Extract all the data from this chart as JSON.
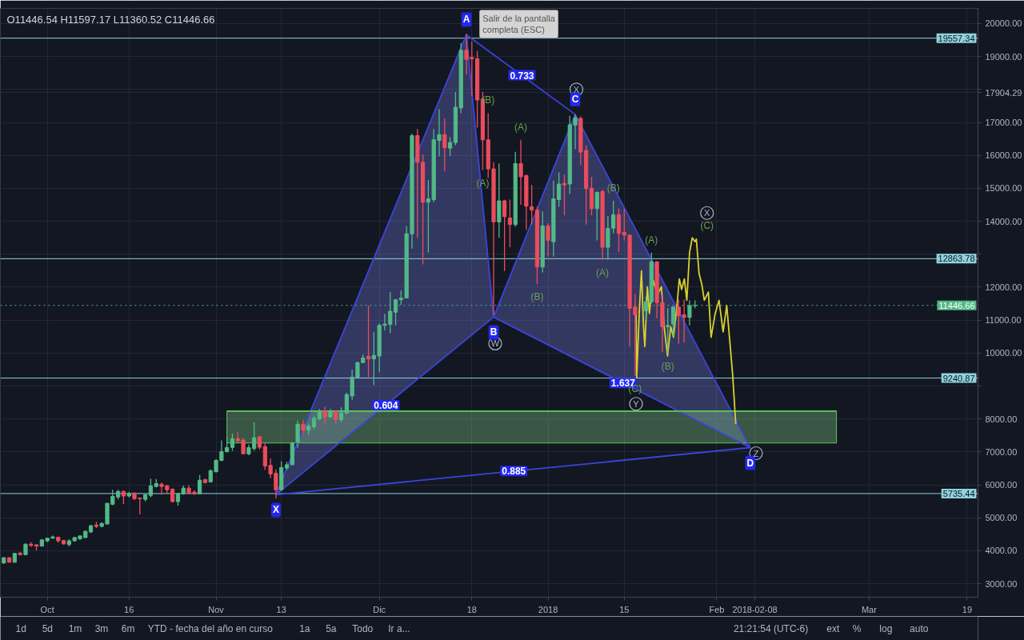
{
  "chart_data": {
    "type": "candlestick",
    "title": "O11446.54 H11597.17 L11360.52 C11446.66",
    "x": [
      "2017-09-23",
      "2017-09-24",
      "2017-09-25",
      "2017-09-26",
      "2017-09-27",
      "2017-09-28",
      "2017-09-29",
      "2017-09-30",
      "2017-10-01",
      "2017-10-02",
      "2017-10-03",
      "2017-10-04",
      "2017-10-05",
      "2017-10-06",
      "2017-10-07",
      "2017-10-08",
      "2017-10-09",
      "2017-10-10",
      "2017-10-11",
      "2017-10-12",
      "2017-10-13",
      "2017-10-14",
      "2017-10-15",
      "2017-10-16",
      "2017-10-17",
      "2017-10-18",
      "2017-10-19",
      "2017-10-20",
      "2017-10-21",
      "2017-10-22",
      "2017-10-23",
      "2017-10-24",
      "2017-10-25",
      "2017-10-26",
      "2017-10-27",
      "2017-10-28",
      "2017-10-29",
      "2017-10-30",
      "2017-10-31",
      "2017-11-01",
      "2017-11-02",
      "2017-11-03",
      "2017-11-04",
      "2017-11-05",
      "2017-11-06",
      "2017-11-07",
      "2017-11-08",
      "2017-11-09",
      "2017-11-10",
      "2017-11-11",
      "2017-11-12",
      "2017-11-13",
      "2017-11-14",
      "2017-11-15",
      "2017-11-16",
      "2017-11-17",
      "2017-11-18",
      "2017-11-19",
      "2017-11-20",
      "2017-11-21",
      "2017-11-22",
      "2017-11-23",
      "2017-11-24",
      "2017-11-25",
      "2017-11-26",
      "2017-11-27",
      "2017-11-28",
      "2017-11-29",
      "2017-11-30",
      "2017-12-01",
      "2017-12-02",
      "2017-12-03",
      "2017-12-04",
      "2017-12-05",
      "2017-12-06",
      "2017-12-07",
      "2017-12-08",
      "2017-12-09",
      "2017-12-10",
      "2017-12-11",
      "2017-12-12",
      "2017-12-13",
      "2017-12-14",
      "2017-12-15",
      "2017-12-16",
      "2017-12-17",
      "2017-12-18",
      "2017-12-19",
      "2017-12-20",
      "2017-12-21",
      "2017-12-22",
      "2017-12-23",
      "2017-12-24",
      "2017-12-25",
      "2017-12-26",
      "2017-12-27",
      "2017-12-28",
      "2017-12-29",
      "2017-12-30",
      "2017-12-31",
      "2018-01-01",
      "2018-01-02",
      "2018-01-03",
      "2018-01-04",
      "2018-01-05",
      "2018-01-06",
      "2018-01-07",
      "2018-01-08",
      "2018-01-09",
      "2018-01-10",
      "2018-01-11",
      "2018-01-12",
      "2018-01-13",
      "2018-01-14",
      "2018-01-15",
      "2018-01-16",
      "2018-01-17",
      "2018-01-19",
      "2018-01-20",
      "2018-01-21",
      "2018-01-22",
      "2018-01-23",
      "2018-01-24",
      "2018-01-25",
      "2018-01-26",
      "2018-01-27",
      "2018-01-28"
    ],
    "ohlc": [
      [
        3630,
        3800,
        3600,
        3790
      ],
      [
        3790,
        3800,
        3640,
        3650
      ],
      [
        3650,
        3940,
        3640,
        3920
      ],
      [
        3930,
        3970,
        3860,
        3880
      ],
      [
        3880,
        4220,
        3870,
        4200
      ],
      [
        4200,
        4260,
        4120,
        4160
      ],
      [
        4180,
        4200,
        4010,
        4140
      ],
      [
        4140,
        4350,
        4130,
        4330
      ],
      [
        4300,
        4400,
        4260,
        4380
      ],
      [
        4380,
        4460,
        4360,
        4420
      ],
      [
        4410,
        4430,
        4250,
        4300
      ],
      [
        4310,
        4330,
        4180,
        4210
      ],
      [
        4190,
        4350,
        4130,
        4300
      ],
      [
        4300,
        4420,
        4280,
        4400
      ],
      [
        4360,
        4470,
        4330,
        4450
      ],
      [
        4400,
        4620,
        4380,
        4590
      ],
      [
        4570,
        4790,
        4540,
        4760
      ],
      [
        4780,
        4880,
        4690,
        4740
      ],
      [
        4740,
        4860,
        4710,
        4830
      ],
      [
        4810,
        5450,
        4800,
        5440
      ],
      [
        5410,
        5850,
        5380,
        5650
      ],
      [
        5630,
        5850,
        5560,
        5800
      ],
      [
        5800,
        5830,
        5410,
        5660
      ],
      [
        5660,
        5790,
        5620,
        5730
      ],
      [
        5750,
        5770,
        5540,
        5580
      ],
      [
        5600,
        5610,
        5100,
        5580
      ],
      [
        5560,
        5740,
        5500,
        5700
      ],
      [
        5680,
        6190,
        5620,
        5970
      ],
      [
        5950,
        6180,
        5920,
        6040
      ],
      [
        6020,
        6060,
        5700,
        5950
      ],
      [
        5970,
        6000,
        5720,
        5850
      ],
      [
        5870,
        5890,
        5470,
        5490
      ],
      [
        5490,
        5760,
        5370,
        5730
      ],
      [
        5730,
        5980,
        5700,
        5900
      ],
      [
        5900,
        5990,
        5710,
        5750
      ],
      [
        5780,
        5830,
        5690,
        5730
      ],
      [
        5730,
        6300,
        5710,
        6140
      ],
      [
        6160,
        6190,
        6040,
        6070
      ],
      [
        6090,
        6470,
        6070,
        6430
      ],
      [
        6400,
        6780,
        6370,
        6740
      ],
      [
        6740,
        7350,
        6720,
        7010
      ],
      [
        7010,
        7450,
        6980,
        7130
      ],
      [
        7135,
        7560,
        7030,
        7400
      ],
      [
        7400,
        7600,
        7290,
        7340
      ],
      [
        7360,
        7420,
        6940,
        6940
      ],
      [
        6940,
        7220,
        6900,
        7130
      ],
      [
        7100,
        7900,
        7040,
        7430
      ],
      [
        7460,
        7480,
        7070,
        7140
      ],
      [
        7160,
        7280,
        6450,
        6570
      ],
      [
        6590,
        6800,
        6200,
        6330
      ],
      [
        6350,
        6470,
        5580,
        5850
      ],
      [
        5850,
        6720,
        5820,
        6530
      ],
      [
        6510,
        6700,
        6450,
        6610
      ],
      [
        6610,
        7300,
        6600,
        7270
      ],
      [
        7300,
        7950,
        7130,
        7840
      ],
      [
        7840,
        7970,
        7540,
        7660
      ],
      [
        7660,
        7850,
        7510,
        7780
      ],
      [
        7760,
        8100,
        7680,
        8020
      ],
      [
        8000,
        8300,
        7960,
        8240
      ],
      [
        8240,
        8370,
        7830,
        8060
      ],
      [
        8060,
        8300,
        8040,
        8220
      ],
      [
        8220,
        8260,
        7850,
        7980
      ],
      [
        7980,
        8350,
        7900,
        8180
      ],
      [
        8180,
        8800,
        8140,
        8740
      ],
      [
        8700,
        9500,
        8580,
        9270
      ],
      [
        9270,
        9740,
        9250,
        9710
      ],
      [
        9710,
        9960,
        9700,
        9850
      ],
      [
        9900,
        11440,
        9270,
        9820
      ],
      [
        9820,
        10640,
        9030,
        9930
      ],
      [
        9910,
        10900,
        9420,
        10840
      ],
      [
        10840,
        11190,
        10690,
        10880
      ],
      [
        10870,
        11850,
        10600,
        11270
      ],
      [
        11240,
        11620,
        10840,
        11620
      ],
      [
        11620,
        11900,
        11460,
        11670
      ],
      [
        11670,
        13850,
        11670,
        13620
      ],
      [
        13620,
        16660,
        13170,
        16600
      ],
      [
        16600,
        16800,
        13500,
        15790
      ],
      [
        15790,
        16030,
        12690,
        14580
      ],
      [
        14580,
        15250,
        13050,
        14680
      ],
      [
        14660,
        16800,
        14580,
        16470
      ],
      [
        16450,
        17400,
        15970,
        16630
      ],
      [
        16630,
        17120,
        15510,
        16230
      ],
      [
        16220,
        16550,
        15980,
        16390
      ],
      [
        16390,
        17920,
        16310,
        17460
      ],
      [
        17440,
        19410,
        17280,
        19190
      ],
      [
        19190,
        19690,
        18450,
        18910
      ],
      [
        18970,
        19450,
        17800,
        18930
      ],
      [
        18930,
        19170,
        16840,
        17680
      ],
      [
        17710,
        17920,
        15550,
        16470
      ],
      [
        16470,
        17280,
        15310,
        15590
      ],
      [
        15590,
        15790,
        11160,
        13980
      ],
      [
        13980,
        15750,
        13500,
        14620
      ],
      [
        14620,
        14650,
        12490,
        14140
      ],
      [
        14100,
        14660,
        13210,
        13900
      ],
      [
        13900,
        16110,
        13840,
        15750
      ],
      [
        15750,
        16470,
        14500,
        15350
      ],
      [
        15390,
        15410,
        13740,
        14460
      ],
      [
        14440,
        15100,
        13900,
        14340
      ],
      [
        14340,
        14440,
        12090,
        12610
      ],
      [
        12610,
        14300,
        12450,
        13860
      ],
      [
        13860,
        13940,
        12930,
        13420
      ],
      [
        13380,
        15230,
        12930,
        14680
      ],
      [
        14660,
        15480,
        14440,
        15130
      ],
      [
        15150,
        15430,
        14180,
        15100
      ],
      [
        15130,
        17200,
        14830,
        16930
      ],
      [
        16920,
        17240,
        16190,
        17140
      ],
      [
        17120,
        17180,
        15710,
        16100
      ],
      [
        16150,
        16310,
        13900,
        14990
      ],
      [
        15000,
        15350,
        14180,
        14380
      ],
      [
        14380,
        14900,
        13420,
        14880
      ],
      [
        14900,
        14960,
        12830,
        13210
      ],
      [
        13210,
        14160,
        12830,
        13780
      ],
      [
        13790,
        14620,
        13630,
        14200
      ],
      [
        14200,
        14390,
        13070,
        13630
      ],
      [
        13660,
        14380,
        13410,
        13580
      ],
      [
        13580,
        13600,
        10200,
        11360
      ],
      [
        11400,
        11800,
        9310,
        11160
      ],
      [
        11280,
        11720,
        11000,
        11560
      ],
      [
        11560,
        13050,
        11500,
        12770
      ],
      [
        12770,
        12790,
        11050,
        11530
      ],
      [
        11530,
        11770,
        10030,
        10800
      ],
      [
        10800,
        11360,
        9990,
        10840
      ],
      [
        10880,
        11420,
        10500,
        11400
      ],
      [
        11400,
        11620,
        10280,
        11130
      ],
      [
        11160,
        11620,
        10320,
        11080
      ],
      [
        11080,
        11600,
        10840,
        11440
      ],
      [
        11446.54,
        11597.17,
        11360.52,
        11446.66
      ]
    ],
    "colors": [
      "#53b987",
      "#eb4d5c",
      "#53b987",
      "#eb4d5c",
      "#53b987",
      "#eb4d5c",
      "#eb4d5c",
      "#53b987",
      "#53b987",
      "#53b987",
      "#eb4d5c",
      "#eb4d5c",
      "#53b987",
      "#53b987",
      "#53b987",
      "#53b987",
      "#53b987",
      "#eb4d5c",
      "#53b987",
      "#53b987",
      "#53b987",
      "#53b987",
      "#eb4d5c",
      "#53b987",
      "#eb4d5c",
      "#eb4d5c",
      "#53b987",
      "#53b987",
      "#53b987",
      "#eb4d5c",
      "#eb4d5c",
      "#eb4d5c",
      "#53b987",
      "#53b987",
      "#eb4d5c",
      "#eb4d5c",
      "#53b987",
      "#eb4d5c",
      "#53b987",
      "#53b987",
      "#53b987",
      "#53b987",
      "#53b987",
      "#eb4d5c",
      "#eb4d5c",
      "#53b987",
      "#53b987",
      "#eb4d5c",
      "#eb4d5c",
      "#eb4d5c",
      "#eb4d5c",
      "#53b987",
      "#53b987",
      "#53b987",
      "#53b987",
      "#eb4d5c",
      "#53b987",
      "#53b987",
      "#53b987",
      "#eb4d5c",
      "#53b987",
      "#eb4d5c",
      "#53b987",
      "#53b987",
      "#53b987",
      "#53b987",
      "#53b987",
      "#eb4d5c",
      "#53b987",
      "#53b987",
      "#53b987",
      "#53b987",
      "#53b987",
      "#53b987",
      "#53b987",
      "#53b987",
      "#eb4d5c",
      "#eb4d5c",
      "#53b987",
      "#53b987",
      "#53b987",
      "#eb4d5c",
      "#53b987",
      "#53b987",
      "#53b987",
      "#eb4d5c",
      "#eb4d5c",
      "#eb4d5c",
      "#eb4d5c",
      "#eb4d5c",
      "#eb4d5c",
      "#53b987",
      "#eb4d5c",
      "#eb4d5c",
      "#53b987",
      "#eb4d5c",
      "#eb4d5c",
      "#eb4d5c",
      "#eb4d5c",
      "#53b987",
      "#eb4d5c",
      "#53b987",
      "#53b987",
      "#eb4d5c",
      "#53b987",
      "#53b987",
      "#eb4d5c",
      "#eb4d5c",
      "#eb4d5c",
      "#53b987",
      "#eb4d5c",
      "#53b987",
      "#53b987",
      "#eb4d5c",
      "#eb4d5c",
      "#eb4d5c",
      "#eb4d5c",
      "#53b987",
      "#53b987",
      "#eb4d5c",
      "#eb4d5c",
      "#53b987",
      "#53b987",
      "#eb4d5c",
      "#eb4d5c",
      "#53b987",
      "#53b987"
    ],
    "series": [
      {
        "type": "line",
        "color": "#3b44d8",
        "x": [
          "2017-11-12",
          "2017-12-17",
          "2017-12-22",
          "2018-01-06",
          "2018-02-07T04:00"
        ],
        "values": [
          5700,
          19660,
          11090,
          17240,
          7130
        ],
        "value_labels": [
          "X",
          "A",
          "B",
          "C",
          "D"
        ],
        "lower": [
          5700,
          10420,
          11090,
          9830,
          7130
        ],
        "upper": [
          5700,
          19660,
          11090,
          17240,
          7130
        ]
      },
      {
        "type": "line",
        "color": "#3b44d8",
        "x": [
          "2017-11-12",
          "2017-12-22",
          "2018-02-07T04:00"
        ],
        "values": [
          5700,
          11090,
          7130
        ]
      },
      {
        "type": "line",
        "color": "#3b44d8",
        "x": [
          "2017-12-17",
          "2018-01-06"
        ],
        "values": [
          19660,
          17240
        ]
      },
      {
        "type": "line",
        "color": "#3b44d8",
        "x": [
          "2017-11-12",
          "2018-02-07T04:00"
        ],
        "values": [
          5700,
          7130
        ]
      },
      {
        "type": "line",
        "color": "#5cc95c",
        "x": [
          "2017-11-03",
          "2018-02-23"
        ],
        "values": [
          8240,
          8240
        ],
        "lower": [
          7270,
          7270
        ],
        "upper": [
          8240,
          8240
        ]
      },
      {
        "type": "line",
        "color": "#d8d22c",
        "x": [
          "2018-01-17T04:00",
          "2018-01-17T07:00",
          "2018-01-17T19:00",
          "2018-01-18T04:00",
          "2018-01-18T13:00",
          "2018-01-18T19:00",
          "2018-01-19T06:00",
          "2018-01-19T15:00",
          "2018-01-20T06:00",
          "2018-01-21T02:00",
          "2018-01-21T20:00",
          "2018-01-22T08:00",
          "2018-01-22T23:00",
          "2018-01-23T13:00",
          "2018-01-24T01:00",
          "2018-01-24T13:00",
          "2018-01-25T03:00",
          "2018-01-25T13:00",
          "2018-01-26T01:00",
          "2018-01-26T12:00",
          "2018-01-27T00:00",
          "2018-01-27T12:00",
          "2018-01-28T00:00",
          "2018-01-28T06:00",
          "2018-01-28T18:00",
          "2018-01-29T06:00",
          "2018-01-29T17:00",
          "2018-01-30T11:00",
          "2018-01-30T23:00",
          "2018-01-31T17:00",
          "2018-02-01T10:00",
          "2018-02-02T04:00",
          "2018-02-02T20:00",
          "2018-02-03T10:00",
          "2018-02-03T22:00",
          "2018-02-04T09:00",
          "2018-02-04T12:00"
        ],
        "values": [
          11360,
          9270,
          11360,
          12490,
          10800,
          10200,
          12010,
          11200,
          12250,
          11770,
          12010,
          10800,
          9910,
          10800,
          10480,
          11200,
          12250,
          11930,
          12250,
          11600,
          13050,
          13500,
          13380,
          13460,
          12410,
          12090,
          11600,
          11850,
          10480,
          11200,
          11600,
          10640,
          11440,
          10320,
          9350,
          8140,
          7850
        ]
      },
      {
        "type": "scatter",
        "marker": "circle",
        "color": "#a9b4c6",
        "x": [
          "2018-01-06T05:00",
          "2018-01-30T05:00",
          "2017-12-22T07:00",
          "2018-01-17T04:00",
          "2018-02-08T05:00"
        ],
        "values": [
          18000,
          14250,
          10290,
          8460,
          6960
        ],
        "value_labels": [
          "X",
          "X",
          "W",
          "Y",
          "Z"
        ]
      }
    ],
    "ref_lines": [
      {
        "axis": "y",
        "value": 19557.34,
        "label": "19557.34",
        "color": "#8fd3dc"
      },
      {
        "axis": "y",
        "value": 12863.78,
        "label": "12863.78",
        "color": "#8fd3dc"
      },
      {
        "axis": "y",
        "value": 11446.66,
        "label": "11446.66",
        "color": "#53b987",
        "line_style": "dotted"
      },
      {
        "axis": "y",
        "value": 9240.87,
        "label": "9240.87",
        "color": "#8fd3dc"
      },
      {
        "axis": "y",
        "value": 5735.44,
        "label": "5735.44",
        "color": "#8fd3dc"
      }
    ],
    "annotations": [
      {
        "text": "0.733",
        "x": "2017-12-27T05:00",
        "y": 18430
      },
      {
        "text": "0.604",
        "x": "2017-12-02T05:00",
        "y": 8420
      },
      {
        "text": "1.637",
        "x": "2018-01-14T19:00",
        "y": 9090
      },
      {
        "text": "0.885",
        "x": "2017-12-25T17:00",
        "y": 6420
      },
      {
        "text": "(B)",
        "x": "2017-12-21",
        "y": 17280
      },
      {
        "text": "(A)",
        "x": "2017-12-27",
        "y": 16470
      },
      {
        "text": "(A)",
        "x": "2017-12-20",
        "y": 15550
      },
      {
        "text": "(B)",
        "x": "2018-01-13",
        "y": 14620
      },
      {
        "text": "(A)",
        "x": "2018-01-20",
        "y": 13050
      },
      {
        "text": "(A)",
        "x": "2018-01-11",
        "y": 12830
      },
      {
        "text": "(B)",
        "x": "2017-12-30",
        "y": 12090
      },
      {
        "text": "(B)",
        "x": "2018-01-23",
        "y": 9990
      },
      {
        "text": "(C)",
        "x": "2018-01-17",
        "y": 9310
      },
      {
        "text": "(C)",
        "x": "2018-01-30T05:00",
        "y": 14250
      },
      "Salir de la pantalla completa (ESC)",
      "1d",
      "5d",
      "1m",
      "3m",
      "6m",
      "YTD - fecha del año en curso",
      "1a",
      "5a",
      "Todo",
      "Ir a...",
      "21:21:54 (UTC-6)",
      "ext",
      "%",
      "log",
      "auto"
    ],
    "xlim": [
      "2017-09-22T09:00",
      "2018-03-21"
    ],
    "xticks": [
      {
        "value": "2017-10-01",
        "label": "Oct"
      },
      {
        "value": "2017-10-16",
        "label": "16"
      },
      {
        "value": "2017-11-01",
        "label": "Nov"
      },
      {
        "value": "2017-11-13",
        "label": "13"
      },
      {
        "value": "2017-12-01",
        "label": "Dic"
      },
      {
        "value": "2017-12-18",
        "label": "18"
      },
      {
        "value": "2018-01-01",
        "label": "2018"
      },
      {
        "value": "2018-01-15",
        "label": "15"
      },
      {
        "value": "2018-02-01",
        "label": "Feb"
      },
      {
        "value": "2018-02-08",
        "label": "2018-02-08"
      },
      {
        "value": "2018-03-01",
        "label": "Mar"
      },
      {
        "value": "2018-03-19",
        "label": "19"
      }
    ],
    "ylim": [
      2590,
      20460
    ],
    "yticks": [
      {
        "value": 3000,
        "label": "3000.00"
      },
      {
        "value": 4000,
        "label": "4000.00"
      },
      {
        "value": 5000,
        "label": "5000.00"
      },
      {
        "value": 6000,
        "label": "6000.00"
      },
      {
        "value": 7000,
        "label": "7000.00"
      },
      {
        "value": 8000,
        "label": "8000.00"
      },
      {
        "value": 9000,
        "label": null
      },
      {
        "value": 10000,
        "label": "10000.00"
      },
      {
        "value": 11000,
        "label": "11000.00"
      },
      {
        "value": 12000,
        "label": "12000.00"
      },
      {
        "value": 13000,
        "label": null
      },
      {
        "value": 14000,
        "label": "14000.00"
      },
      {
        "value": 15000,
        "label": "15000.00"
      },
      {
        "value": 16000,
        "label": "16000.00"
      },
      {
        "value": 17000,
        "label": "17000.00"
      },
      17904.29,
      {
        "value": 18000,
        "label": null
      },
      {
        "value": 19000,
        "label": "19000.00"
      },
      {
        "value": 20000,
        "label": "20000.00"
      }
    ],
    "grid": true
  }
}
